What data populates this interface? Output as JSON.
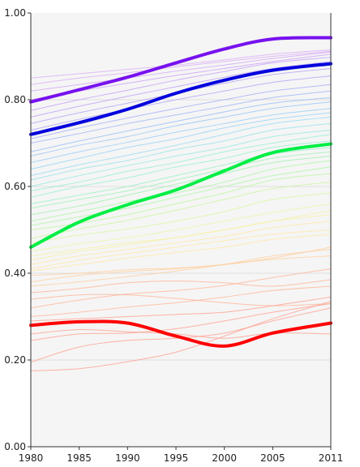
{
  "chart_data": {
    "type": "line",
    "title": "",
    "xlabel": "",
    "ylabel": "",
    "xlim": [
      1980,
      2011
    ],
    "ylim": [
      0,
      1
    ],
    "grid": true,
    "legend": "none",
    "x_ticks": [
      "1980",
      "1985",
      "1990",
      "1995",
      "2000",
      "2005",
      "2011"
    ],
    "y_ticks": [
      "0.00",
      "0.20",
      "0.40",
      "0.60",
      "0.80",
      "1.00"
    ],
    "x": [
      1980,
      1985,
      1990,
      1995,
      2000,
      2005,
      2011
    ],
    "series": [
      {
        "color": "#ff0000",
        "emphasis": true,
        "values": [
          0.28,
          0.288,
          0.285,
          0.255,
          0.232,
          0.262,
          0.285
        ]
      },
      {
        "color": "#00ee44",
        "emphasis": true,
        "values": [
          0.46,
          0.518,
          0.558,
          0.592,
          0.636,
          0.678,
          0.698
        ]
      },
      {
        "color": "#0000dd",
        "emphasis": true,
        "values": [
          0.72,
          0.747,
          0.778,
          0.815,
          0.845,
          0.868,
          0.883
        ]
      },
      {
        "color": "#7711ee",
        "emphasis": true,
        "values": [
          0.795,
          0.823,
          0.852,
          0.885,
          0.917,
          0.94,
          0.943
        ]
      },
      {
        "color": "#ff9a8a",
        "values": [
          0.175,
          0.18,
          0.196,
          0.218,
          0.255,
          0.295,
          0.335
        ]
      },
      {
        "color": "#ff9a8a",
        "values": [
          0.195,
          0.23,
          0.245,
          0.25,
          0.262,
          0.29,
          0.32
        ]
      },
      {
        "color": "#ff9a8a",
        "values": [
          0.245,
          0.26,
          0.262,
          0.272,
          0.29,
          0.31,
          0.33
        ]
      },
      {
        "color": "#ff9a8a",
        "values": [
          0.26,
          0.27,
          0.265,
          0.26,
          0.25,
          0.262,
          0.26
        ]
      },
      {
        "color": "#ff9a8a",
        "values": [
          0.29,
          0.295,
          0.3,
          0.305,
          0.31,
          0.325,
          0.345
        ]
      },
      {
        "color": "#ffb090",
        "values": [
          0.3,
          0.31,
          0.322,
          0.332,
          0.345,
          0.36,
          0.37
        ]
      },
      {
        "color": "#ffb090",
        "values": [
          0.32,
          0.338,
          0.352,
          0.36,
          0.372,
          0.39,
          0.41
        ]
      },
      {
        "color": "#ffb090",
        "values": [
          0.34,
          0.35,
          0.35,
          0.342,
          0.332,
          0.325,
          0.33
        ]
      },
      {
        "color": "#ffb090",
        "values": [
          0.355,
          0.365,
          0.378,
          0.382,
          0.378,
          0.37,
          0.385
        ]
      },
      {
        "color": "#ffcc99",
        "values": [
          0.37,
          0.38,
          0.392,
          0.405,
          0.42,
          0.44,
          0.455
        ]
      },
      {
        "color": "#ffcc99",
        "values": [
          0.38,
          0.395,
          0.404,
          0.41,
          0.42,
          0.432,
          0.44
        ]
      },
      {
        "color": "#ffcc99",
        "values": [
          0.395,
          0.4,
          0.408,
          0.412,
          0.42,
          0.435,
          0.46
        ]
      },
      {
        "color": "#ffe6a0",
        "values": [
          0.405,
          0.42,
          0.435,
          0.448,
          0.46,
          0.478,
          0.49
        ]
      },
      {
        "color": "#ffe6a0",
        "values": [
          0.41,
          0.43,
          0.445,
          0.46,
          0.475,
          0.49,
          0.5
        ]
      },
      {
        "color": "#ffe6a0",
        "values": [
          0.42,
          0.44,
          0.455,
          0.47,
          0.485,
          0.505,
          0.52
        ]
      },
      {
        "color": "#f5f0a0",
        "values": [
          0.43,
          0.45,
          0.465,
          0.482,
          0.5,
          0.52,
          0.535
        ]
      },
      {
        "color": "#f5f0a0",
        "values": [
          0.44,
          0.455,
          0.47,
          0.482,
          0.5,
          0.52,
          0.545
        ]
      },
      {
        "color": "#e8f5a0",
        "values": [
          0.45,
          0.468,
          0.482,
          0.5,
          0.52,
          0.54,
          0.56
        ]
      },
      {
        "color": "#d8f59a",
        "values": [
          0.47,
          0.488,
          0.502,
          0.52,
          0.542,
          0.57,
          0.585
        ]
      },
      {
        "color": "#c8f59a",
        "values": [
          0.48,
          0.502,
          0.522,
          0.545,
          0.57,
          0.595,
          0.61
        ]
      },
      {
        "color": "#b8f59a",
        "values": [
          0.5,
          0.515,
          0.535,
          0.56,
          0.585,
          0.615,
          0.63
        ]
      },
      {
        "color": "#a8f5a0",
        "values": [
          0.51,
          0.53,
          0.55,
          0.575,
          0.6,
          0.625,
          0.645
        ]
      },
      {
        "color": "#a8f5a0",
        "values": [
          0.52,
          0.542,
          0.565,
          0.585,
          0.61,
          0.64,
          0.66
        ]
      },
      {
        "color": "#98f0a8",
        "values": [
          0.535,
          0.555,
          0.58,
          0.605,
          0.63,
          0.655,
          0.67
        ]
      },
      {
        "color": "#98f0b0",
        "values": [
          0.55,
          0.57,
          0.59,
          0.615,
          0.64,
          0.665,
          0.68
        ]
      },
      {
        "color": "#90f0c0",
        "values": [
          0.56,
          0.58,
          0.6,
          0.625,
          0.65,
          0.675,
          0.69
        ]
      },
      {
        "color": "#90f0c8",
        "values": [
          0.575,
          0.6,
          0.62,
          0.645,
          0.665,
          0.69,
          0.705
        ]
      },
      {
        "color": "#90ecd0",
        "values": [
          0.59,
          0.61,
          0.635,
          0.655,
          0.68,
          0.7,
          0.72
        ]
      },
      {
        "color": "#90e8dc",
        "values": [
          0.6,
          0.625,
          0.648,
          0.67,
          0.69,
          0.715,
          0.73
        ]
      },
      {
        "color": "#90e0e8",
        "values": [
          0.615,
          0.64,
          0.66,
          0.685,
          0.705,
          0.73,
          0.745
        ]
      },
      {
        "color": "#90d8f0",
        "values": [
          0.625,
          0.65,
          0.672,
          0.695,
          0.72,
          0.745,
          0.76
        ]
      },
      {
        "color": "#90d0f5",
        "values": [
          0.64,
          0.665,
          0.69,
          0.71,
          0.735,
          0.755,
          0.77
        ]
      },
      {
        "color": "#90c8f5",
        "values": [
          0.655,
          0.68,
          0.702,
          0.725,
          0.745,
          0.765,
          0.78
        ]
      },
      {
        "color": "#90c0f5",
        "values": [
          0.67,
          0.695,
          0.715,
          0.74,
          0.76,
          0.78,
          0.795
        ]
      },
      {
        "color": "#90b8f5",
        "values": [
          0.68,
          0.705,
          0.728,
          0.75,
          0.772,
          0.792,
          0.805
        ]
      },
      {
        "color": "#98b0f5",
        "values": [
          0.7,
          0.722,
          0.745,
          0.765,
          0.785,
          0.805,
          0.82
        ]
      },
      {
        "color": "#a0a8f5",
        "values": [
          0.71,
          0.735,
          0.758,
          0.78,
          0.8,
          0.82,
          0.835
        ]
      },
      {
        "color": "#a8a0f5",
        "values": [
          0.73,
          0.755,
          0.778,
          0.8,
          0.82,
          0.84,
          0.855
        ]
      },
      {
        "color": "#b09cf5",
        "values": [
          0.745,
          0.77,
          0.792,
          0.815,
          0.838,
          0.858,
          0.872
        ]
      },
      {
        "color": "#b898f5",
        "values": [
          0.76,
          0.785,
          0.808,
          0.83,
          0.852,
          0.872,
          0.888
        ]
      },
      {
        "color": "#c098f5",
        "values": [
          0.775,
          0.8,
          0.822,
          0.845,
          0.865,
          0.885,
          0.898
        ]
      },
      {
        "color": "#c898f5",
        "values": [
          0.8,
          0.82,
          0.838,
          0.856,
          0.872,
          0.888,
          0.905
        ]
      },
      {
        "color": "#d0a0f5",
        "values": [
          0.82,
          0.835,
          0.85,
          0.866,
          0.88,
          0.895,
          0.91
        ]
      },
      {
        "color": "#d8a8f5",
        "values": [
          0.835,
          0.85,
          0.862,
          0.876,
          0.888,
          0.9,
          0.912
        ]
      },
      {
        "color": "#d8a8f5",
        "values": [
          0.85,
          0.86,
          0.87,
          0.88,
          0.892,
          0.905,
          0.915
        ]
      }
    ]
  }
}
